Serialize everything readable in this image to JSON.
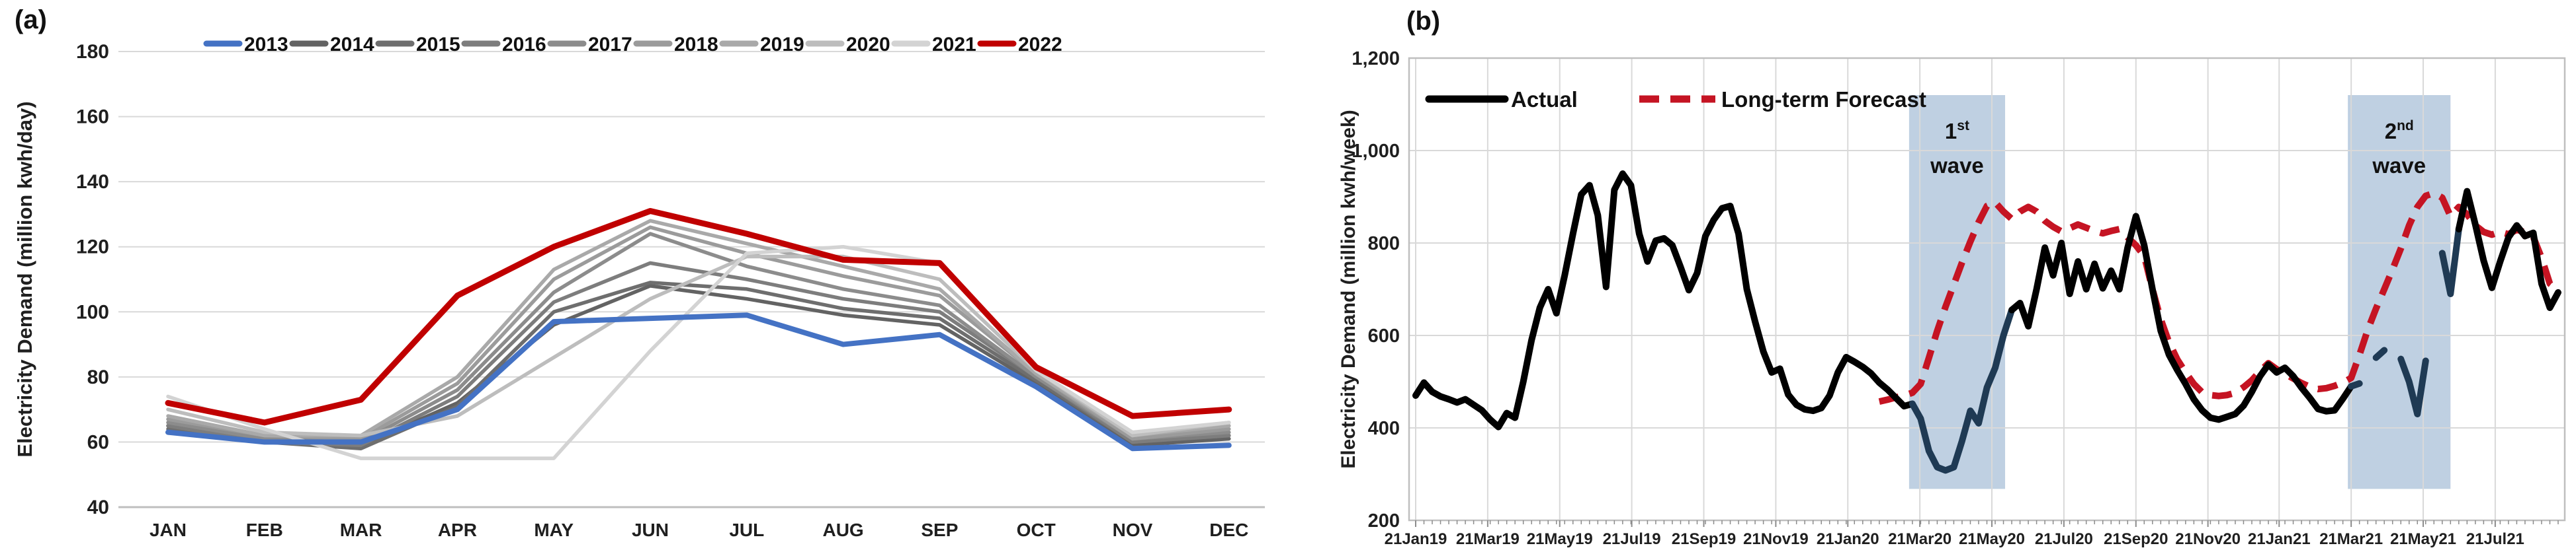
{
  "figure": {
    "panel_a_tag": "(a)",
    "panel_b_tag": "(b)"
  },
  "chart_data": [
    {
      "type": "line",
      "panel": "a",
      "ylabel": "Electricity Demand (million kwh/day)",
      "ylim": [
        40,
        180
      ],
      "yticks": [
        40,
        60,
        80,
        100,
        120,
        140,
        160,
        180
      ],
      "grid": "horizontal",
      "legend_position": "top",
      "categories": [
        "JAN",
        "FEB",
        "MAR",
        "APR",
        "MAY",
        "JUN",
        "JUL",
        "AUG",
        "SEP",
        "OCT",
        "NOV",
        "DEC"
      ],
      "series": [
        {
          "name": "2013",
          "color": "#4472C4",
          "z": 2,
          "accent": true,
          "values": [
            63,
            60,
            60,
            70,
            97,
            98,
            99,
            90,
            93,
            77,
            58,
            59
          ]
        },
        {
          "name": "2014",
          "color": "#636363",
          "z": 1,
          "accent": false,
          "values": [
            65,
            61,
            59,
            72,
            96,
            108,
            104,
            99,
            96,
            78,
            59,
            61
          ]
        },
        {
          "name": "2015",
          "color": "#6E6E6E",
          "z": 1,
          "accent": false,
          "values": [
            64,
            60,
            58,
            71,
            100,
            109,
            107,
            101,
            98,
            79,
            60,
            62
          ]
        },
        {
          "name": "2016",
          "color": "#7D7D7D",
          "z": 1,
          "accent": false,
          "values": [
            65,
            60,
            59,
            74,
            103,
            115,
            110,
            104,
            100,
            80,
            60,
            62
          ]
        },
        {
          "name": "2017",
          "color": "#8C8C8C",
          "z": 1,
          "accent": false,
          "values": [
            66,
            61,
            60,
            76,
            106,
            124,
            114,
            107,
            102,
            80,
            61,
            63
          ]
        },
        {
          "name": "2018",
          "color": "#9B9B9B",
          "z": 1,
          "accent": false,
          "values": [
            67,
            62,
            61,
            78,
            110,
            126,
            118,
            111,
            105,
            81,
            61,
            64
          ]
        },
        {
          "name": "2019",
          "color": "#A9A9A9",
          "z": 1,
          "accent": false,
          "values": [
            68,
            62,
            62,
            80,
            113,
            128,
            121,
            114,
            107,
            81,
            62,
            65
          ]
        },
        {
          "name": "2020",
          "color": "#BDBDBD",
          "z": 1,
          "accent": false,
          "values": [
            70,
            63,
            62,
            68,
            86,
            104,
            117,
            117,
            110,
            82,
            62,
            66
          ]
        },
        {
          "name": "2021",
          "color": "#D3D3D3",
          "z": 1,
          "accent": false,
          "values": [
            74,
            64,
            55,
            55,
            55,
            88,
            118,
            120,
            115,
            82,
            63,
            66
          ]
        },
        {
          "name": "2022",
          "color": "#C00000",
          "z": 3,
          "accent": true,
          "values": [
            72,
            66,
            73,
            105,
            120,
            131,
            124,
            116,
            115,
            83,
            68,
            70
          ]
        }
      ]
    },
    {
      "type": "line",
      "panel": "b",
      "ylabel": "Electricity Demand (million kwh/week)",
      "ylim": [
        200,
        1200
      ],
      "yticks": [
        {
          "value": 200,
          "label": "200"
        },
        {
          "value": 400,
          "label": "400"
        },
        {
          "value": 600,
          "label": "600"
        },
        {
          "value": 800,
          "label": "800"
        },
        {
          "value": 1000,
          "label": "1,000"
        },
        {
          "value": 1200,
          "label": "1,200"
        }
      ],
      "grid": "both",
      "x_unit": "week",
      "weeks_total": 138.8,
      "x_labels": [
        {
          "text": "21Jan19",
          "week": 0.0
        },
        {
          "text": "21Mar19",
          "week": 8.7
        },
        {
          "text": "21May19",
          "week": 17.4
        },
        {
          "text": "21Jul19",
          "week": 26.1
        },
        {
          "text": "21Sep19",
          "week": 34.8
        },
        {
          "text": "21Nov19",
          "week": 43.5
        },
        {
          "text": "21Jan20",
          "week": 52.2
        },
        {
          "text": "21Mar20",
          "week": 60.9
        },
        {
          "text": "21May20",
          "week": 69.6
        },
        {
          "text": "21Jul20",
          "week": 78.3
        },
        {
          "text": "21Sep20",
          "week": 87.0
        },
        {
          "text": "21Nov20",
          "week": 95.7
        },
        {
          "text": "21Jan21",
          "week": 104.3
        },
        {
          "text": "21Mar21",
          "week": 113.0
        },
        {
          "text": "21May21",
          "week": 121.7
        },
        {
          "text": "21Jul21",
          "week": 130.4
        }
      ],
      "bands": [
        {
          "start_week": 59.6,
          "end_week": 71.2,
          "top_value": 1120,
          "bottom_value": 268,
          "color": "#BFD0E2",
          "label_number": "1",
          "label_suffix": "st",
          "label_word": "wave"
        },
        {
          "start_week": 112.6,
          "end_week": 125.0,
          "top_value": 1120,
          "bottom_value": 268,
          "color": "#BFD0E2",
          "label_number": "2",
          "label_suffix": "nd",
          "label_word": "wave"
        }
      ],
      "in_band_line_color": "#1F3A54",
      "series": [
        {
          "name": "Actual",
          "color": "#000000",
          "dashed": false,
          "start_week": 0,
          "values": [
            470,
            498,
            478,
            468,
            462,
            455,
            462,
            450,
            438,
            418,
            402,
            432,
            422,
            500,
            590,
            660,
            700,
            648,
            730,
            820,
            905,
            925,
            860,
            705,
            915,
            950,
            925,
            820,
            760,
            805,
            810,
            795,
            748,
            698,
            735,
            815,
            850,
            875,
            880,
            820,
            700,
            630,
            565,
            520,
            528,
            472,
            450,
            440,
            437,
            443,
            470,
            520,
            553,
            543,
            532,
            518,
            498,
            483,
            465,
            447,
            452,
            420,
            350,
            315,
            308,
            315,
            372,
            437,
            410,
            487,
            530,
            600,
            655,
            670,
            620,
            700,
            790,
            730,
            800,
            690,
            760,
            700,
            755,
            702,
            740,
            700,
            790,
            858,
            795,
            700,
            610,
            558,
            525,
            495,
            462,
            438,
            422,
            418,
            424,
            430,
            448,
            478,
            512,
            537,
            520,
            530,
            512,
            487,
            465,
            441,
            436,
            438,
            463,
            490,
            496,
            null,
            552,
            568,
            null,
            549,
            500,
            430,
            545,
            null,
            778,
            690,
            830,
            912,
            840,
            762,
            703,
            760,
            812,
            838,
            815,
            822,
            712,
            660,
            693
          ]
        },
        {
          "name": "Long-term Forecast",
          "color": "#C51423",
          "dashed": true,
          "start_week": 56,
          "values": [
            457,
            461,
            466,
            470,
            476,
            495,
            552,
            610,
            662,
            710,
            758,
            803,
            845,
            880,
            888,
            868,
            852,
            868,
            878,
            868,
            848,
            835,
            825,
            832,
            840,
            833,
            826,
            821,
            826,
            830,
            812,
            795,
            772,
            700,
            635,
            585,
            548,
            520,
            495,
            477,
            471,
            469,
            471,
            476,
            488,
            503,
            523,
            540,
            527,
            517,
            507,
            497,
            489,
            484,
            486,
            491,
            498,
            508,
            558,
            612,
            658,
            700,
            743,
            788,
            838,
            878,
            902,
            908,
            898,
            858,
            878,
            862,
            838,
            824,
            818,
            824,
            819,
            829,
            823,
            813,
            768,
            712,
            698
          ]
        }
      ]
    }
  ]
}
